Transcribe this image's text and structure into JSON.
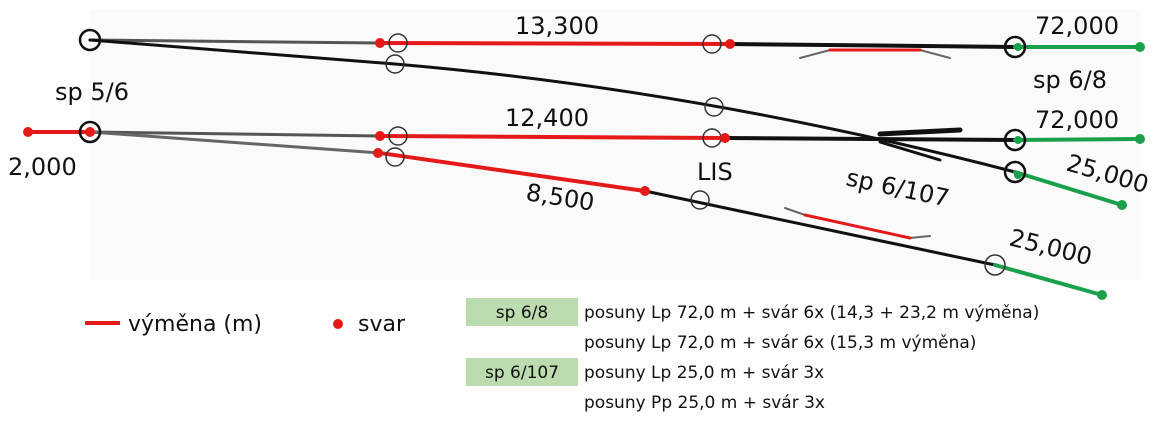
{
  "labels": {
    "top_length": "13,300",
    "top_right": "72,000",
    "sp_top": "sp 6/8",
    "sp_left": "sp 5/6",
    "mid_length": "12,400",
    "mid_right": "72,000",
    "left_stub": "2,000",
    "lis": "LIS",
    "sp_mid": "sp 6/107",
    "mid_branch_right": "25,000",
    "low_length": "8,500",
    "low_right": "25,000"
  },
  "legend": {
    "switch": "výměna (m)",
    "weld": "svar"
  },
  "notes": [
    {
      "tag": "sp 6/8",
      "text": "posuny Lp 72,0 m + svár 6x (14,3 + 23,2 m výměna)"
    },
    {
      "text": "posuny Lp 72,0 m + svár 6x (15,3 m výměna)"
    },
    {
      "tag": "sp 6/107",
      "text": "posuny Lp  25,0 m + svár 3x"
    },
    {
      "text": "posuny Pp  25,0 m + svár 3x"
    }
  ]
}
